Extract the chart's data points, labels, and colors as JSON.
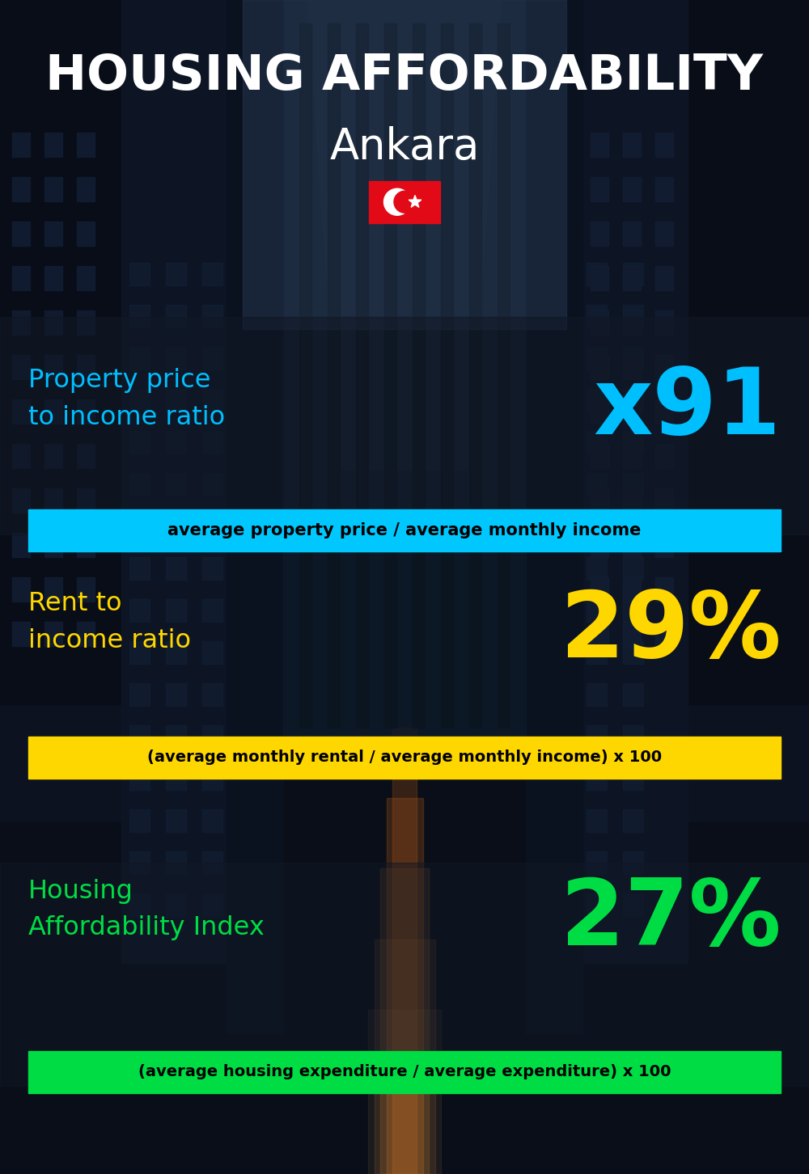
{
  "title_line1": "HOUSING AFFORDABILITY",
  "title_line2": "Ankara",
  "bg_color": "#0a0e1a",
  "section1_label": "Property price\nto income ratio",
  "section1_value": "x91",
  "section1_label_color": "#00bfff",
  "section1_value_color": "#00bfff",
  "section1_bar_text": "average property price / average monthly income",
  "section1_bar_color": "#00c8ff",
  "section1_bar_text_color": "#000000",
  "section2_label": "Rent to\nincome ratio",
  "section2_value": "29%",
  "section2_label_color": "#ffd700",
  "section2_value_color": "#ffd700",
  "section2_bar_text": "(average monthly rental / average monthly income) x 100",
  "section2_bar_color": "#ffd700",
  "section2_bar_text_color": "#000000",
  "section3_label": "Housing\nAffordability Index",
  "section3_value": "27%",
  "section3_label_color": "#00dd44",
  "section3_value_color": "#00dd44",
  "section3_bar_text": "(average housing expenditure / average expenditure) x 100",
  "section3_bar_color": "#00dd44",
  "section3_bar_text_color": "#000000",
  "flag_color": "#E30A17",
  "flag_crescent_color": "#ffffff",
  "flag_star_color": "#ffffff"
}
